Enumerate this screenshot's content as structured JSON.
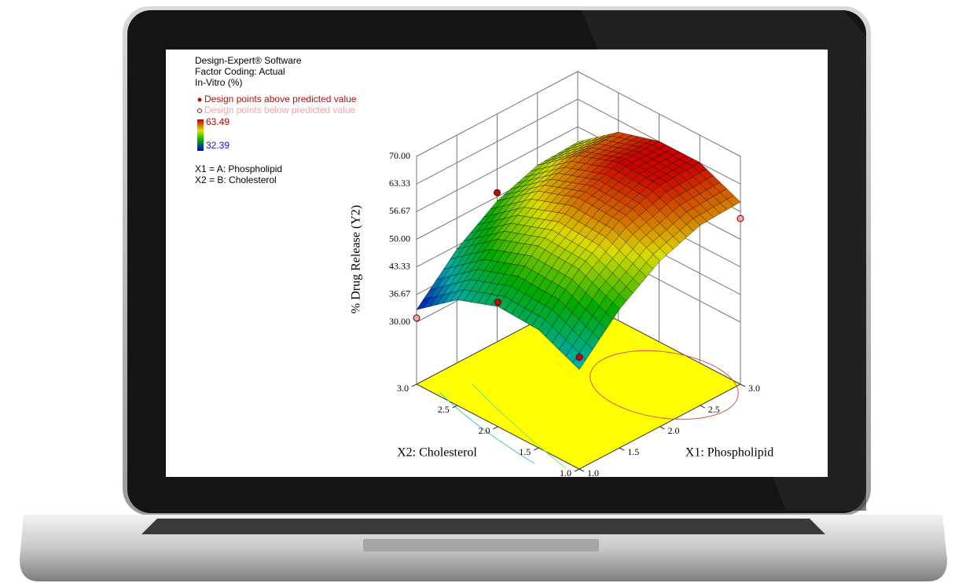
{
  "chart_data": {
    "type": "surface",
    "software": "Design-Expert® Software",
    "coding": "Factor Coding: Actual",
    "response": "In-Vitro (%)",
    "legend_above": "Design points above predicted value",
    "legend_below": "Design points below predicted value",
    "above_color": "#b01010",
    "below_color": "#f2a5a5",
    "color_max": 63.49,
    "color_min": 32.39,
    "factor1": "X1 = A: Phospholipid",
    "factor2": "X2 = B: Cholesterol",
    "zlabel": "% Drug Release (Y2)",
    "xlabel": "X1: Phospholipid",
    "ylabel": "X2: Cholesterol",
    "xlim": [
      1,
      3
    ],
    "ylim": [
      1,
      3
    ],
    "zlim": [
      30,
      70
    ],
    "xticks": [
      {
        "value": 1,
        "label": "1.0"
      },
      1.5,
      {
        "value": 2,
        "label": "2.0"
      },
      2.5,
      {
        "value": 3,
        "label": "3.0"
      }
    ],
    "yticks": [
      {
        "value": 1,
        "label": "1.0"
      },
      1.5,
      {
        "value": 2,
        "label": "2.0"
      },
      2.5,
      {
        "value": 3,
        "label": "3.0"
      }
    ],
    "zticks": [
      {
        "value": 30,
        "label": "30.00"
      },
      36.67,
      43.33,
      {
        "value": 50,
        "label": "50.00"
      },
      56.67,
      63.33,
      {
        "value": 70,
        "label": "70.00"
      }
    ],
    "x": [
      1,
      1.5,
      2,
      2.5,
      3
    ],
    "y": [
      1,
      1.5,
      2,
      2.5,
      3
    ],
    "z": [
      [
        39,
        48.5,
        55,
        58.5,
        59
      ],
      [
        43.5,
        53,
        59.5,
        63,
        63.4
      ],
      [
        44,
        53.5,
        60,
        63.4,
        63.4
      ],
      [
        40.5,
        50,
        56.5,
        60,
        60.5
      ],
      [
        33,
        42.5,
        49,
        52.5,
        53
      ]
    ],
    "points": {
      "x": [
        1,
        1,
        1,
        2,
        3
      ],
      "y": [
        3,
        2,
        1,
        3,
        1
      ],
      "z": [
        31,
        45,
        42,
        51,
        55
      ],
      "above": [
        false,
        true,
        true,
        true,
        false
      ]
    }
  }
}
